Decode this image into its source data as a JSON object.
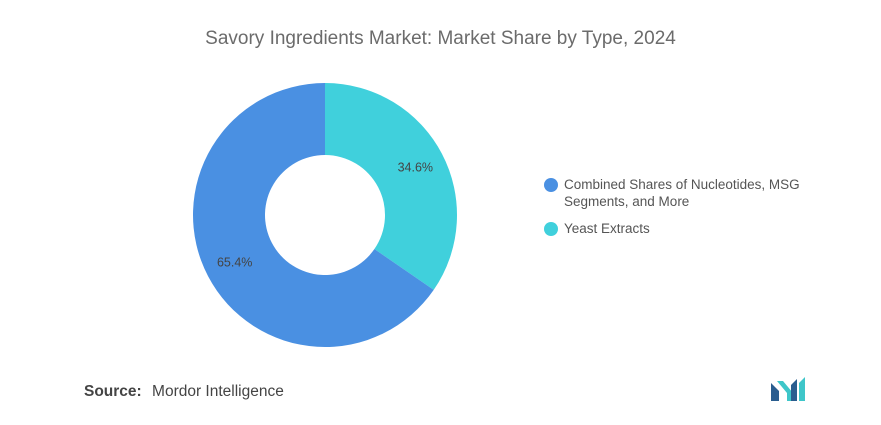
{
  "chart_data": {
    "type": "pie",
    "title": "Savory Ingredients Market: Market Share by Type, 2024",
    "labels": [
      "Combined Shares of Nucleotides, MSG Segments, and More",
      "Yeast Extracts"
    ],
    "values": [
      65.4,
      34.6
    ],
    "data_labels": [
      "65.4%",
      "34.6%"
    ],
    "colors": [
      "#4a90e2",
      "#40d0dc"
    ],
    "donut": true,
    "legend_position": "right"
  },
  "source": {
    "label": "Source:",
    "text": "Mordor Intelligence"
  },
  "logo": {
    "icon": "mordor-intelligence-logo",
    "colors": [
      "#2a5d8f",
      "#3ec6c9"
    ]
  }
}
